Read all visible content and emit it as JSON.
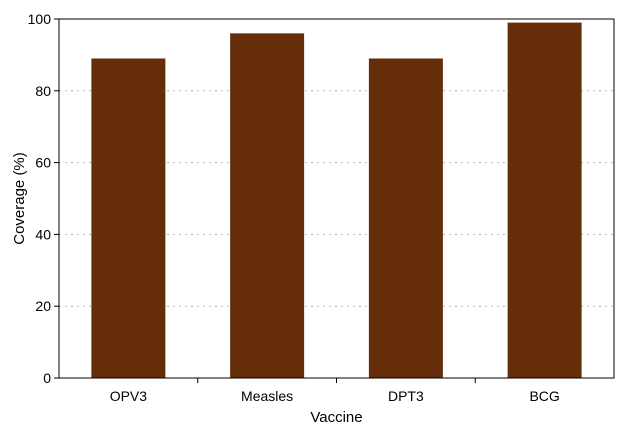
{
  "chart_data": {
    "type": "bar",
    "title": "",
    "xlabel": "Vaccine",
    "ylabel": "Coverage (%)",
    "categories": [
      "OPV3",
      "Measles",
      "DPT3",
      "BCG"
    ],
    "values": [
      89,
      96,
      89,
      99
    ],
    "ylim": [
      0,
      100
    ],
    "yticks": [
      0,
      20,
      40,
      60,
      80,
      100
    ],
    "grid": "y dotted",
    "legend": "none",
    "bar_color": "#662d0a",
    "grid_color": "#b4b4b4"
  }
}
